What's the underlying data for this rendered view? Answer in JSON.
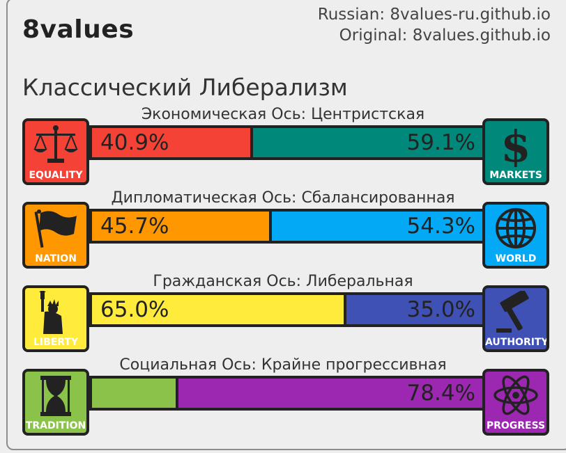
{
  "app_title": "8values",
  "credits": {
    "russian": "Russian: 8values-ru.github.io",
    "original": "Original: 8values.github.io"
  },
  "ideology": "Классический Либерализм",
  "axes": [
    {
      "label": "Экономическая Ось: Центристская",
      "left": {
        "name": "EQUALITY",
        "icon": "scales-icon",
        "percent": 40.9,
        "text": "40.9%",
        "color": "#f44336"
      },
      "right": {
        "name": "MARKETS",
        "icon": "dollar-sign-icon",
        "percent": 59.1,
        "text": "59.1%",
        "color": "#00897b"
      }
    },
    {
      "label": "Дипломатическая Ось: Сбалансированная",
      "left": {
        "name": "NATION",
        "icon": "flag-icon",
        "percent": 45.7,
        "text": "45.7%",
        "color": "#ff9800"
      },
      "right": {
        "name": "WORLD",
        "icon": "globe-icon",
        "percent": 54.3,
        "text": "54.3%",
        "color": "#03a9f4"
      }
    },
    {
      "label": "Гражданская Ось: Либеральная",
      "left": {
        "name": "LIBERTY",
        "icon": "statue-of-liberty-icon",
        "percent": 65.0,
        "text": "65.0%",
        "color": "#ffeb3b"
      },
      "right": {
        "name": "AUTHORITY",
        "icon": "gavel-icon",
        "percent": 35.0,
        "text": "35.0%",
        "color": "#3f51b5"
      }
    },
    {
      "label": "Социальная Ось: Крайне прогрессивная",
      "left": {
        "name": "TRADITION",
        "icon": "hourglass-icon",
        "percent": 21.6,
        "text": "",
        "color": "#8bc34a"
      },
      "right": {
        "name": "PROGRESS",
        "icon": "atom-icon",
        "percent": 78.4,
        "text": "78.4%",
        "color": "#9c27b0"
      }
    }
  ]
}
